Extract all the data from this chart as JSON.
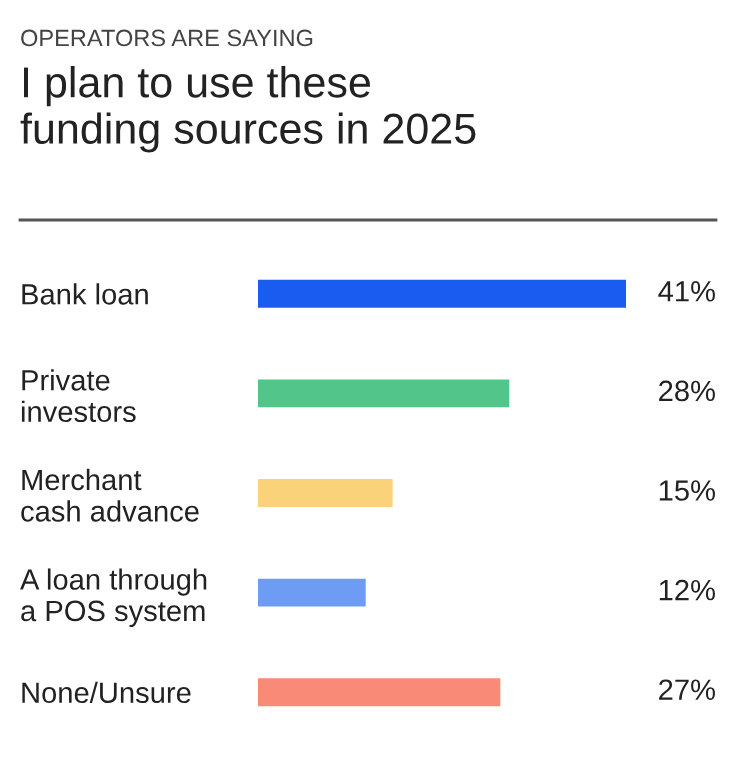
{
  "chart_data": {
    "type": "bar",
    "orientation": "horizontal",
    "subtitle": "OPERATORS ARE SAYING",
    "title": "I plan to use these\nfunding sources in 2025",
    "categories": [
      "Bank loan",
      "Private\ninvestors",
      "Merchant\ncash advance",
      "A loan through\na POS system",
      "None/Unsure"
    ],
    "values": [
      41,
      28,
      15,
      12,
      27
    ],
    "colors": [
      "#1a5cf0",
      "#52c58a",
      "#fad27a",
      "#6e9cf5",
      "#f98a78"
    ],
    "value_labels": [
      "41%",
      "28%",
      "15%",
      "12%",
      "27%"
    ],
    "grid": false,
    "legend": false
  }
}
